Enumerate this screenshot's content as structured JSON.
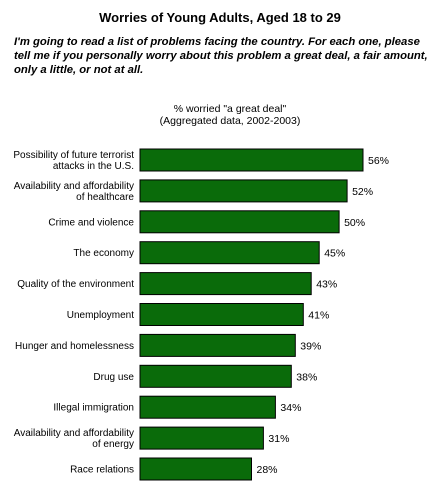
{
  "page": {
    "title": "Worries of Young Adults, Aged 18 to 29",
    "question": "I'm going to read a list of problems facing the country. For each one, please tell me if you personally worry about this problem a great deal, a fair amount, only a little, or not at all.",
    "subtitle_line1": "% worried \"a great deal\"",
    "subtitle_line2": "(Aggregated data, 2002-2003)"
  },
  "chart_data": {
    "type": "bar",
    "orientation": "horizontal",
    "title": "Worries of Young Adults, Aged 18 to 29",
    "categories": [
      [
        "Possibility of future terrorist",
        "attacks in the U.S."
      ],
      [
        "Availability and affordability",
        "of healthcare"
      ],
      [
        "Crime and violence"
      ],
      [
        "The economy"
      ],
      [
        "Quality of the environment"
      ],
      [
        "Unemployment"
      ],
      [
        "Hunger and homelessness"
      ],
      [
        "Drug use"
      ],
      [
        "Illegal immigration"
      ],
      [
        "Availability and affordability",
        "of energy"
      ],
      [
        "Race relations"
      ]
    ],
    "values": [
      56,
      52,
      50,
      45,
      43,
      41,
      39,
      38,
      34,
      31,
      28
    ],
    "value_suffix": "%",
    "bar_color": "#0a6b0a",
    "xlim": [
      0,
      56
    ]
  }
}
